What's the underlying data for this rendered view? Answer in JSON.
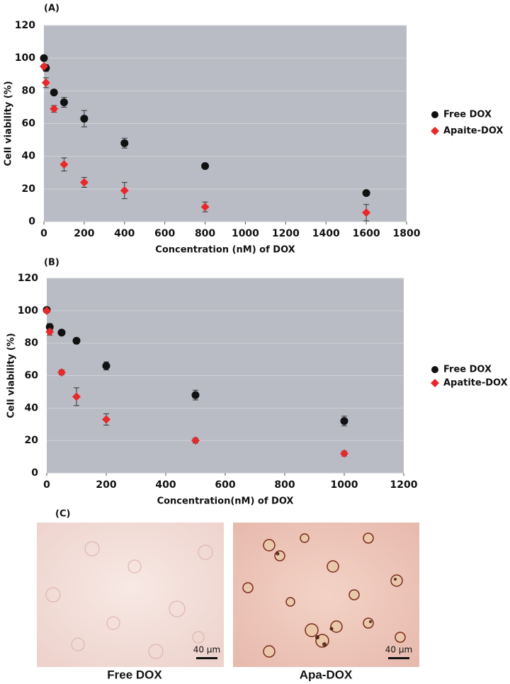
{
  "chart_data": [
    {
      "type": "scatter",
      "label": "(A)",
      "xlabel": "Concentration (nM) of DOX",
      "ylabel": "Cell viability (%)",
      "x": [
        0,
        10,
        50,
        100,
        200,
        400,
        800,
        1600
      ],
      "series": [
        {
          "name": "Free DOX",
          "color": "#111111",
          "marker": "circle",
          "values": [
            100,
            94,
            79,
            73,
            63,
            48,
            34,
            17.5
          ],
          "errors": [
            1,
            2,
            1.5,
            3,
            5,
            3,
            1,
            1
          ]
        },
        {
          "name": "Apaite-DOX",
          "color": "#e8292b",
          "marker": "diamond",
          "values": [
            95,
            85,
            69,
            35,
            24,
            19,
            9,
            5.5
          ],
          "errors": [
            1,
            3,
            2,
            4,
            3,
            5,
            3,
            5
          ]
        }
      ],
      "xlim": [
        0,
        1800
      ],
      "xticks": [
        0,
        200,
        400,
        600,
        800,
        1000,
        1200,
        1400,
        1600,
        1800
      ],
      "ylim": [
        0,
        120
      ],
      "yticks": [
        0,
        20,
        40,
        60,
        80,
        100,
        120
      ],
      "grid": true
    },
    {
      "type": "scatter",
      "label": "(B)",
      "xlabel": "Concentration(nM) of DOX",
      "ylabel": "Cell viability (%)",
      "x": [
        0,
        10,
        50,
        100,
        200,
        500,
        1000
      ],
      "series": [
        {
          "name": "Free DOX",
          "color": "#111111",
          "marker": "circle",
          "values": [
            100.5,
            90,
            86.5,
            81.5,
            66,
            48,
            32
          ],
          "errors": [
            1,
            2,
            1,
            1.5,
            2.5,
            3,
            3
          ]
        },
        {
          "name": "Apatite-DOX",
          "color": "#e8292b",
          "marker": "diamond",
          "values": [
            100,
            87,
            62,
            47,
            33,
            20,
            12
          ],
          "errors": [
            1,
            2,
            1.5,
            5.5,
            3.5,
            1.5,
            1.5
          ]
        }
      ],
      "xlim": [
        0,
        1200
      ],
      "xticks": [
        0,
        200,
        400,
        600,
        800,
        1000,
        1200
      ],
      "ylim": [
        0,
        120
      ],
      "yticks": [
        0,
        20,
        40,
        60,
        80,
        100,
        120
      ],
      "grid": true
    }
  ],
  "panel_c": {
    "label": "(C)",
    "images": [
      {
        "caption": "Free DOX",
        "scale_bar": "40 μm"
      },
      {
        "caption": "Apa-DOX",
        "scale_bar": "40 μm"
      }
    ]
  }
}
